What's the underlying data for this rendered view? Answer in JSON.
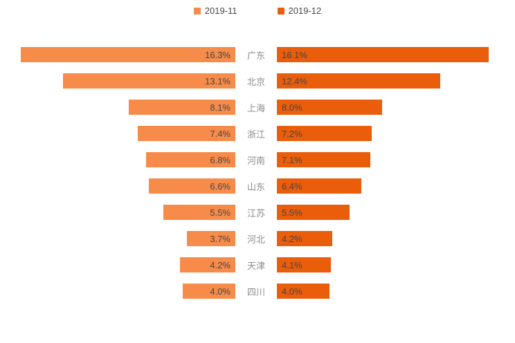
{
  "chart_data": {
    "type": "bar",
    "variant": "tornado",
    "title": "",
    "legend_position": "top-center",
    "grid": false,
    "legend": [
      {
        "name": "2019-11",
        "color": "#f68b4a"
      },
      {
        "name": "2019-12",
        "color": "#ea5d0b"
      }
    ],
    "categories": [
      "广东",
      "北京",
      "上海",
      "浙江",
      "河南",
      "山东",
      "江苏",
      "河北",
      "天津",
      "四川"
    ],
    "series": [
      {
        "name": "2019-11",
        "values": [
          16.3,
          13.1,
          8.1,
          7.4,
          6.8,
          6.6,
          5.5,
          3.7,
          4.2,
          4.0
        ],
        "labels": [
          "16.3%",
          "13.1%",
          "8.1%",
          "7.4%",
          "6.8%",
          "6.6%",
          "5.5%",
          "3.7%",
          "4.2%",
          "4.0%"
        ]
      },
      {
        "name": "2019-12",
        "values": [
          16.1,
          12.4,
          8.0,
          7.2,
          7.1,
          6.4,
          5.5,
          4.2,
          4.1,
          4.0
        ],
        "labels": [
          "16.1%",
          "12.4%",
          "8.0%",
          "7.2%",
          "7.1%",
          "6.4%",
          "5.5%",
          "4.2%",
          "4.1%",
          "4.0%"
        ]
      }
    ],
    "value_unit": "%",
    "xlim": [
      0,
      18
    ]
  }
}
